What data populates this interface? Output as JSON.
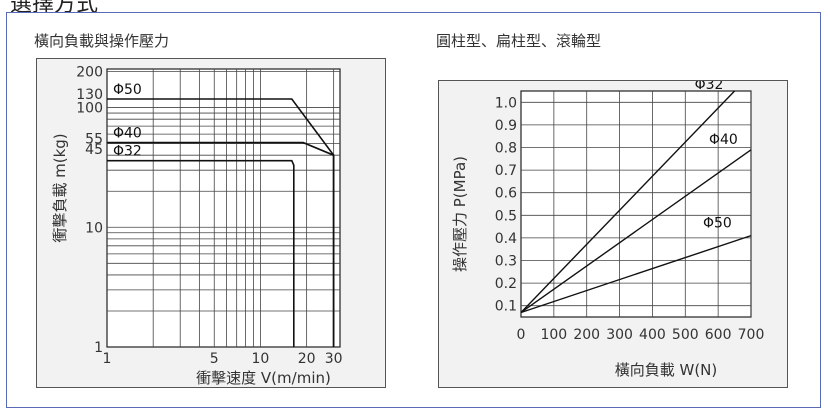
{
  "header_fragment": "選擇方式",
  "left_panel": {
    "title": "橫向負載與操作壓力"
  },
  "right_panel": {
    "title": "圓柱型、扁柱型、滾輪型"
  },
  "chart_data": [
    {
      "type": "line",
      "xlabel": "衝擊速度 V(m/min)",
      "ylabel": "衝擊負載 m(kg)",
      "xscale": "log",
      "yscale": "log",
      "xlim": [
        1,
        33
      ],
      "ylim": [
        1,
        210
      ],
      "x_tick_labels": [
        "1",
        "5",
        "10",
        "20",
        "30"
      ],
      "x_ticks": [
        1,
        5,
        10,
        20,
        30
      ],
      "y_tick_labels": [
        "1",
        "10",
        "45",
        "55",
        "100",
        "130",
        "200"
      ],
      "y_ticks": [
        1,
        10,
        45,
        55,
        100,
        130,
        200
      ],
      "grid": true,
      "series": [
        {
          "name": "Φ50",
          "points": [
            [
              1,
              118
            ],
            [
              16,
              118
            ],
            [
              30,
              40
            ],
            [
              30,
              1
            ]
          ]
        },
        {
          "name": "Φ40",
          "points": [
            [
              1,
              51
            ],
            [
              19,
              51
            ],
            [
              30,
              40
            ],
            [
              30,
              1
            ]
          ]
        },
        {
          "name": "Φ32",
          "points": [
            [
              1,
              36
            ],
            [
              16,
              36
            ],
            [
              16.5,
              33
            ],
            [
              16.5,
              1
            ]
          ]
        }
      ]
    },
    {
      "type": "line",
      "xlabel": "橫向負載 W(N)",
      "ylabel": "操作壓力 P(MPa)",
      "xlim": [
        0,
        700
      ],
      "ylim": [
        0.05,
        1.05
      ],
      "x_ticks": [
        0,
        100,
        200,
        300,
        400,
        500,
        600,
        700
      ],
      "x_tick_labels": [
        "0",
        "100",
        "200",
        "300",
        "400",
        "500",
        "600",
        "700"
      ],
      "y_ticks": [
        0.1,
        0.2,
        0.3,
        0.4,
        0.5,
        0.6,
        0.7,
        0.8,
        0.9,
        1.0
      ],
      "y_tick_labels": [
        "0.1",
        "0.2",
        "0.3",
        "0.4",
        "0.5",
        "0.6",
        "0.7",
        "0.8",
        "0.9",
        "1.0"
      ],
      "grid": true,
      "series": [
        {
          "name": "Φ32",
          "points": [
            [
              0,
              0.07
            ],
            [
              650,
              1.05
            ]
          ]
        },
        {
          "name": "Φ40",
          "points": [
            [
              0,
              0.07
            ],
            [
              700,
              0.79
            ]
          ]
        },
        {
          "name": "Φ50",
          "points": [
            [
              0,
              0.07
            ],
            [
              700,
              0.41
            ]
          ]
        }
      ]
    }
  ]
}
